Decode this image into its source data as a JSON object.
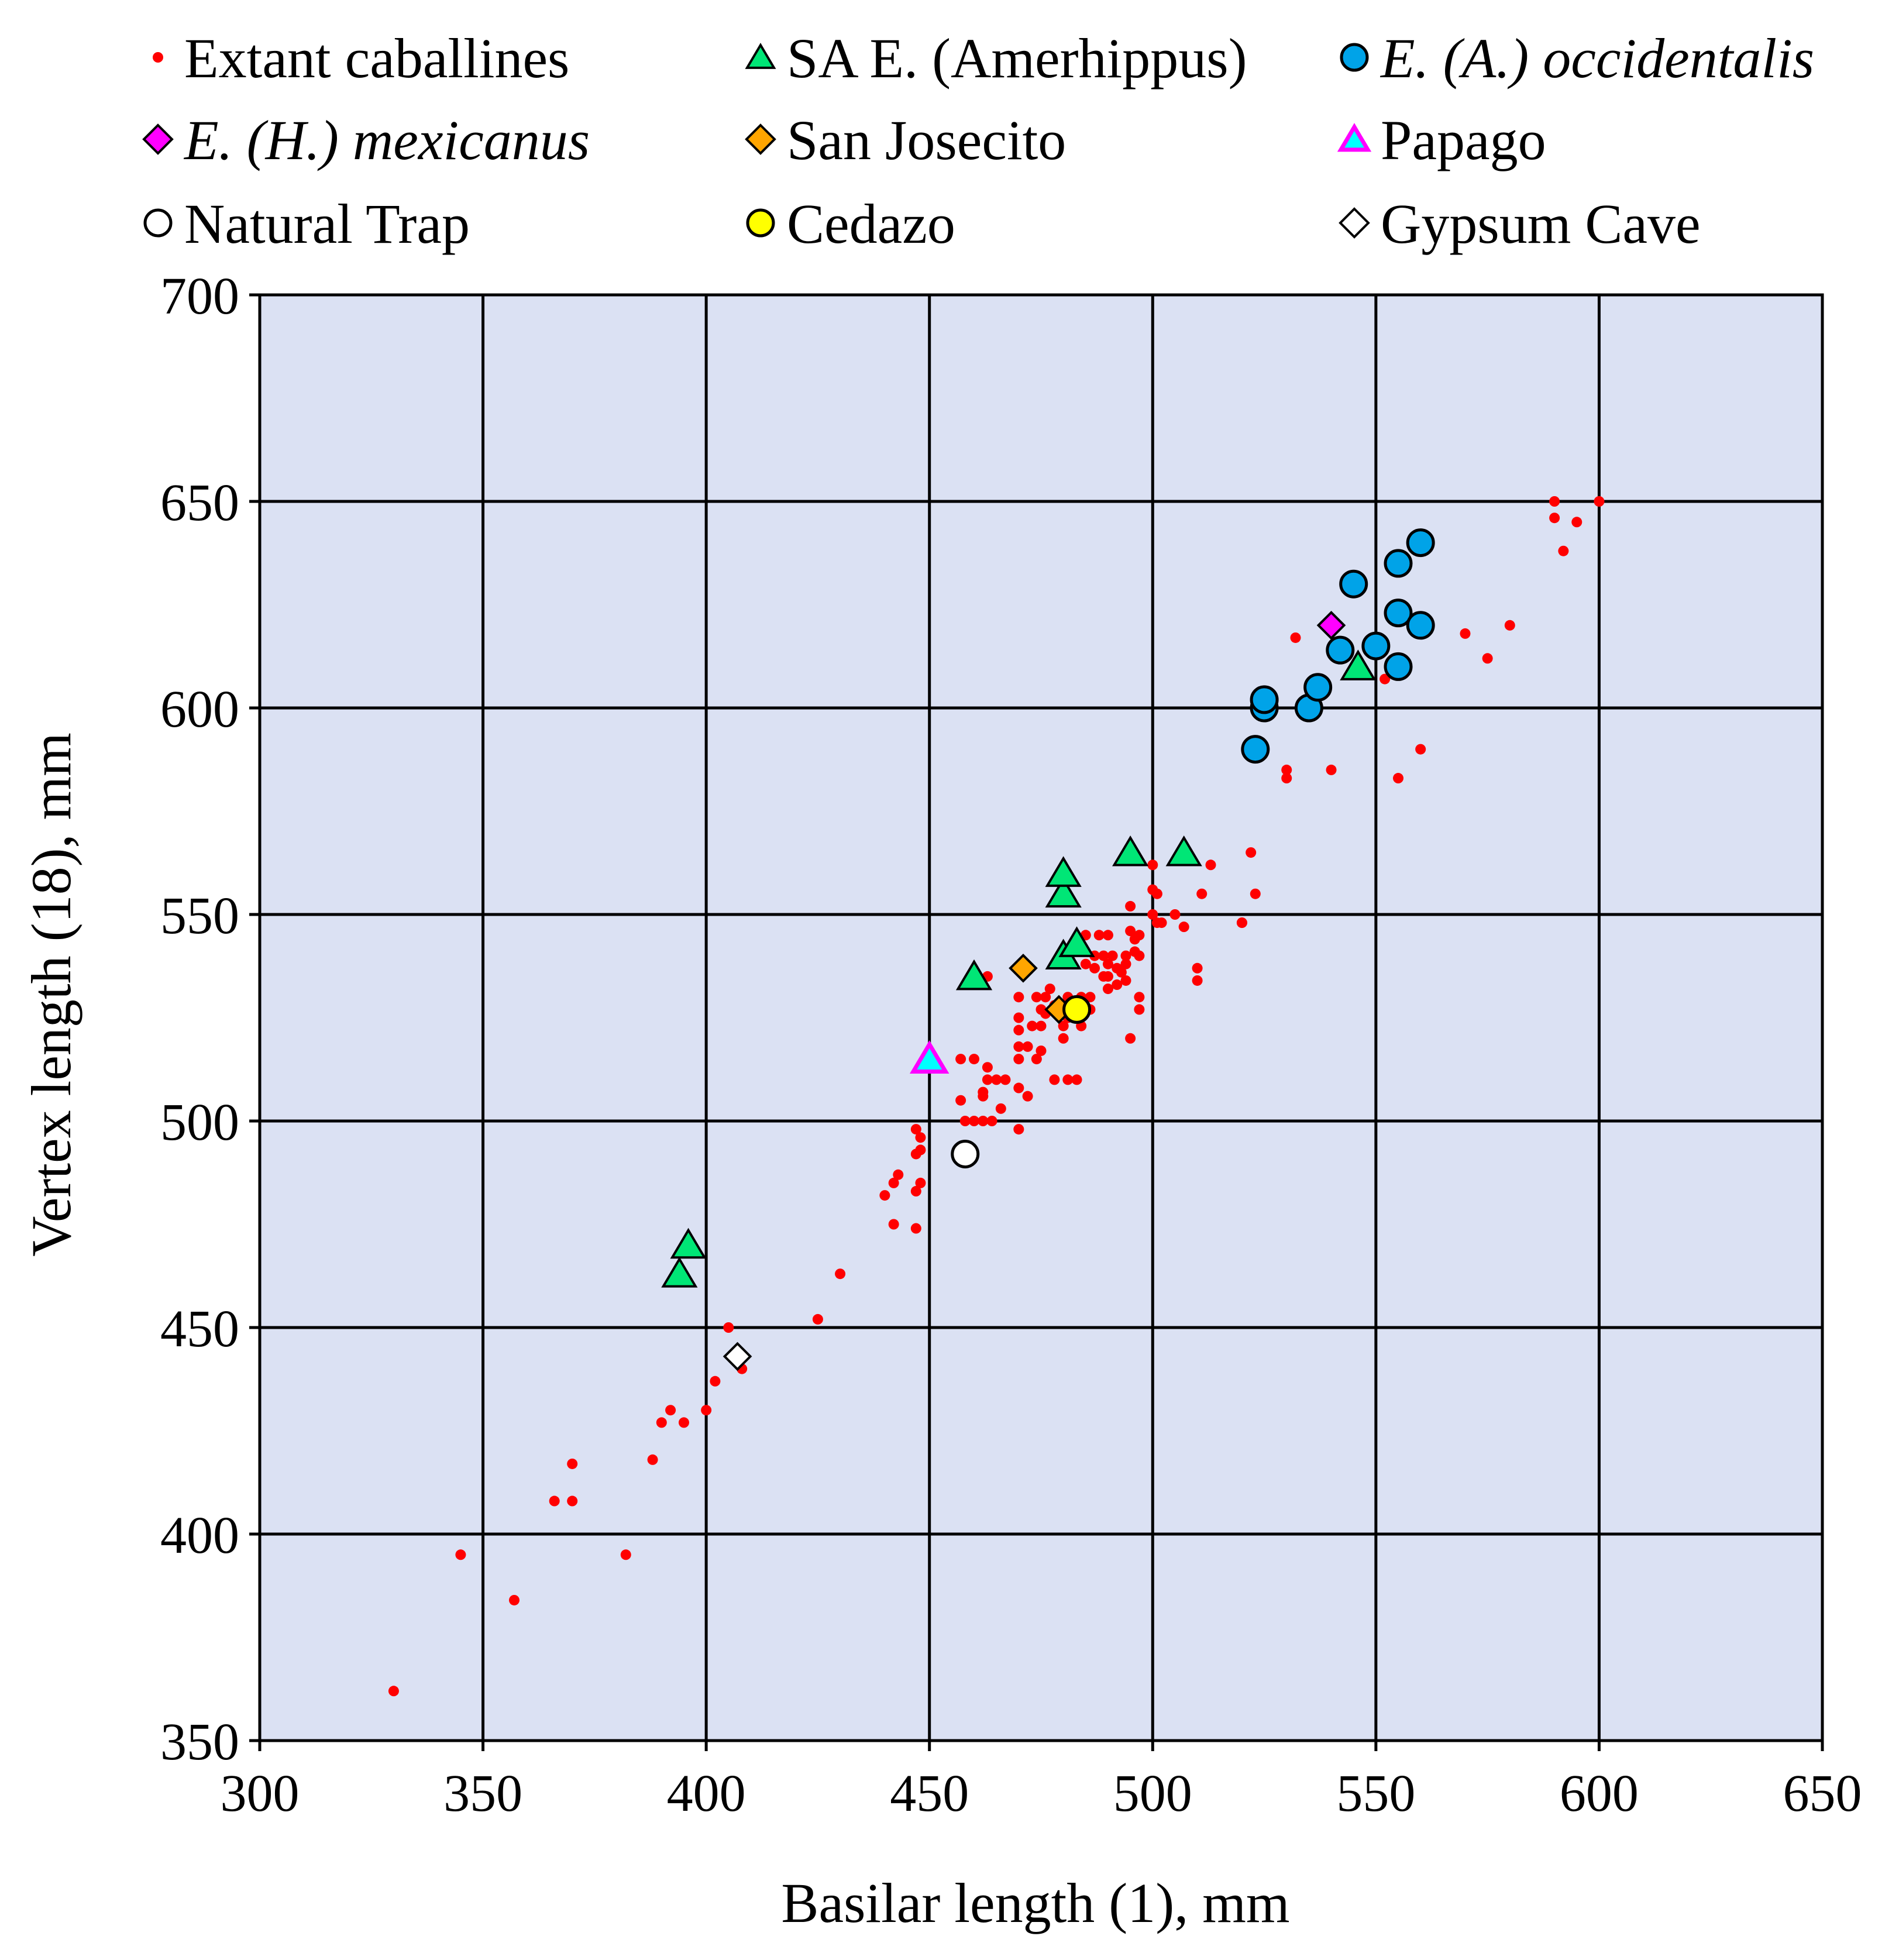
{
  "chart_data": {
    "type": "scatter",
    "title": "",
    "xlabel": "Basilar length (1), mm",
    "ylabel": "Vertex length (18), mm",
    "xlim": [
      300,
      650
    ],
    "ylim": [
      350,
      700
    ],
    "xticks": [
      300,
      350,
      400,
      450,
      500,
      550,
      600,
      650
    ],
    "yticks": [
      350,
      400,
      450,
      500,
      550,
      600,
      650,
      700
    ],
    "grid": true,
    "plot_background": "#dbe1f3",
    "legend_position": "top",
    "series": [
      {
        "name": "Extant caballines",
        "italic": false,
        "marker": "dot",
        "fill": "#ff0000",
        "stroke": "#ff0000",
        "points": [
          [
            330,
            362
          ],
          [
            345,
            395
          ],
          [
            357,
            384
          ],
          [
            366,
            408
          ],
          [
            370,
            408
          ],
          [
            370,
            417
          ],
          [
            382,
            395
          ],
          [
            388,
            418
          ],
          [
            390,
            427
          ],
          [
            392,
            430
          ],
          [
            395,
            427
          ],
          [
            400,
            430
          ],
          [
            402,
            437
          ],
          [
            405,
            450
          ],
          [
            408,
            440
          ],
          [
            425,
            452
          ],
          [
            430,
            463
          ],
          [
            440,
            482
          ],
          [
            442,
            485
          ],
          [
            443,
            487
          ],
          [
            442,
            475
          ],
          [
            447,
            474
          ],
          [
            447,
            483
          ],
          [
            448,
            485
          ],
          [
            447,
            492
          ],
          [
            448,
            493
          ],
          [
            447,
            498
          ],
          [
            448,
            496
          ],
          [
            457,
            505
          ],
          [
            457,
            515
          ],
          [
            458,
            500
          ],
          [
            458,
            490
          ],
          [
            460,
            500
          ],
          [
            460,
            515
          ],
          [
            462,
            500
          ],
          [
            462,
            506
          ],
          [
            462,
            507
          ],
          [
            463,
            513
          ],
          [
            463,
            510
          ],
          [
            464,
            500
          ],
          [
            465,
            510
          ],
          [
            466,
            503
          ],
          [
            467,
            510
          ],
          [
            470,
            508
          ],
          [
            470,
            498
          ],
          [
            470,
            515
          ],
          [
            470,
            518
          ],
          [
            470,
            522
          ],
          [
            470,
            525
          ],
          [
            470,
            530
          ],
          [
            472,
            518
          ],
          [
            472,
            506
          ],
          [
            473,
            523
          ],
          [
            474,
            530
          ],
          [
            474,
            515
          ],
          [
            475,
            517
          ],
          [
            475,
            527
          ],
          [
            475,
            523
          ],
          [
            476,
            530
          ],
          [
            476,
            526
          ],
          [
            477,
            532
          ],
          [
            478,
            528
          ],
          [
            478,
            510
          ],
          [
            480,
            523
          ],
          [
            480,
            520
          ],
          [
            481,
            510
          ],
          [
            481,
            530
          ],
          [
            481,
            525
          ],
          [
            483,
            510
          ],
          [
            484,
            530
          ],
          [
            484,
            523
          ],
          [
            485,
            545
          ],
          [
            485,
            538
          ],
          [
            486,
            530
          ],
          [
            486,
            527
          ],
          [
            487,
            540
          ],
          [
            487,
            537
          ],
          [
            488,
            545
          ],
          [
            489,
            535
          ],
          [
            489,
            540
          ],
          [
            490,
            538
          ],
          [
            490,
            535
          ],
          [
            490,
            532
          ],
          [
            490,
            545
          ],
          [
            491,
            540
          ],
          [
            492,
            533
          ],
          [
            492,
            537
          ],
          [
            493,
            536
          ],
          [
            494,
            540
          ],
          [
            494,
            538
          ],
          [
            494,
            534
          ],
          [
            495,
            520
          ],
          [
            495,
            546
          ],
          [
            495,
            552
          ],
          [
            496,
            544
          ],
          [
            496,
            541
          ],
          [
            497,
            540
          ],
          [
            497,
            530
          ],
          [
            497,
            545
          ],
          [
            497,
            527
          ],
          [
            500,
            562
          ],
          [
            500,
            550
          ],
          [
            500,
            556
          ],
          [
            501,
            548
          ],
          [
            501,
            555
          ],
          [
            502,
            548
          ],
          [
            505,
            550
          ],
          [
            507,
            547
          ],
          [
            510,
            537
          ],
          [
            510,
            534
          ],
          [
            511,
            555
          ],
          [
            513,
            562
          ],
          [
            520,
            548
          ],
          [
            522,
            565
          ],
          [
            523,
            555
          ],
          [
            530,
            585
          ],
          [
            530,
            583
          ],
          [
            532,
            617
          ],
          [
            540,
            585
          ],
          [
            552,
            607
          ],
          [
            555,
            583
          ],
          [
            560,
            590
          ],
          [
            570,
            618
          ],
          [
            575,
            612
          ],
          [
            580,
            620
          ],
          [
            590,
            650
          ],
          [
            590,
            646
          ],
          [
            592,
            638
          ],
          [
            595,
            645
          ],
          [
            600,
            650
          ],
          [
            463,
            535
          ],
          [
            520,
            548
          ]
        ]
      },
      {
        "name": "SA E. (Amerhippus)",
        "italic": false,
        "marker": "triangle",
        "fill": "#00e676",
        "stroke": "#000000",
        "points": [
          [
            394,
            463
          ],
          [
            396,
            470
          ],
          [
            460,
            535
          ],
          [
            480,
            540
          ],
          [
            480,
            555
          ],
          [
            480,
            560
          ],
          [
            483,
            543
          ],
          [
            495,
            565
          ],
          [
            507,
            565
          ],
          [
            546,
            610
          ]
        ]
      },
      {
        "name": "E. (A.) occidentalis",
        "italic": true,
        "marker": "circle",
        "fill": "#00a3e8",
        "stroke": "#000000",
        "points": [
          [
            523,
            590
          ],
          [
            525,
            600
          ],
          [
            525,
            602
          ],
          [
            535,
            600
          ],
          [
            537,
            605
          ],
          [
            542,
            614
          ],
          [
            545,
            630
          ],
          [
            550,
            615
          ],
          [
            555,
            635
          ],
          [
            555,
            623
          ],
          [
            555,
            610
          ],
          [
            560,
            640
          ],
          [
            560,
            620
          ]
        ]
      },
      {
        "name": "E. (H.) mexicanus",
        "italic": true,
        "marker": "diamond",
        "fill": "#ff00ff",
        "stroke": "#000000",
        "points": [
          [
            540,
            620
          ]
        ]
      },
      {
        "name": "San Josecito",
        "italic": false,
        "marker": "diamond",
        "fill": "#ffa500",
        "stroke": "#000000",
        "points": [
          [
            471,
            537
          ],
          [
            479,
            527
          ]
        ]
      },
      {
        "name": "Papago",
        "italic": false,
        "marker": "triangle",
        "fill": "#00ffff",
        "stroke": "#ff00ff",
        "points": [
          [
            450,
            515
          ]
        ]
      },
      {
        "name": "Natural Trap",
        "italic": false,
        "marker": "circle",
        "fill": "#ffffff",
        "stroke": "#000000",
        "points": [
          [
            458,
            492
          ]
        ]
      },
      {
        "name": "Cedazo",
        "italic": false,
        "marker": "circle",
        "fill": "#ffff00",
        "stroke": "#000000",
        "points": [
          [
            483,
            527
          ]
        ]
      },
      {
        "name": "Gypsum Cave",
        "italic": false,
        "marker": "diamond",
        "fill": "#ffffff",
        "stroke": "#000000",
        "points": [
          [
            407,
            443
          ]
        ]
      }
    ]
  }
}
